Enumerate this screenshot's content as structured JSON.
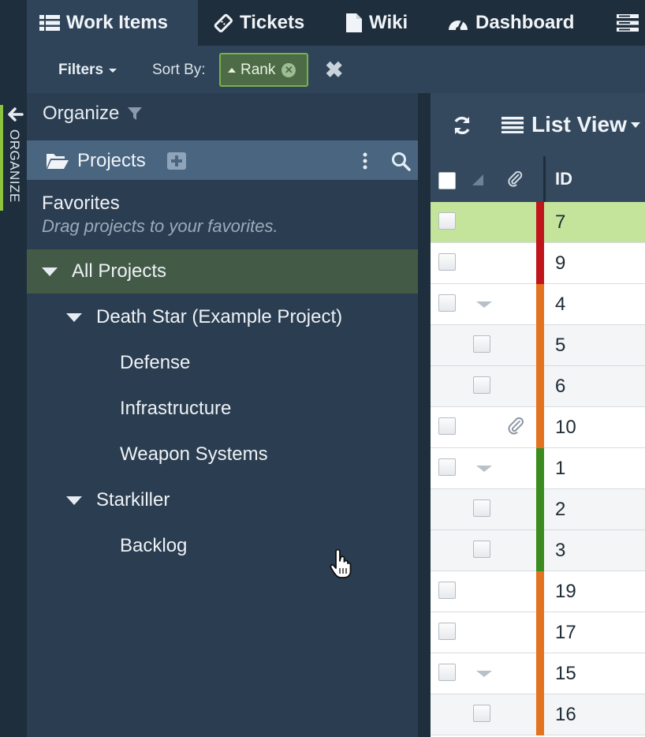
{
  "nav": {
    "tabs": [
      {
        "label": "Work Items",
        "icon": "list-icon"
      },
      {
        "label": "Tickets",
        "icon": "ticket-icon"
      },
      {
        "label": "Wiki",
        "icon": "document-icon"
      },
      {
        "label": "Dashboard",
        "icon": "dashboard-icon"
      }
    ],
    "active_tab": "Work Items"
  },
  "filter_bar": {
    "filters_label": "Filters",
    "sort_by_label": "Sort By:",
    "sort_chip_label": "Rank"
  },
  "organize": {
    "strip_label": "ORGANIZE",
    "title": "Organize",
    "projects_label": "Projects",
    "favorites_title": "Favorites",
    "favorites_hint": "Drag projects to your favorites.",
    "tree": [
      {
        "label": "All Projects",
        "level": 0,
        "expanded": true,
        "selected": true
      },
      {
        "label": "Death Star (Example Project)",
        "level": 1,
        "expanded": true
      },
      {
        "label": "Defense",
        "level": 2
      },
      {
        "label": "Infrastructure",
        "level": 2
      },
      {
        "label": "Weapon Systems",
        "level": 2
      },
      {
        "label": "Starkiller",
        "level": 1,
        "expanded": true
      },
      {
        "label": "Backlog",
        "level": 2
      }
    ]
  },
  "list": {
    "view_label": "List View",
    "columns": {
      "id": "ID"
    },
    "rows": [
      {
        "id": "7",
        "color": "#c0151b",
        "selected": true,
        "indent": false,
        "expand": false,
        "attachment": false
      },
      {
        "id": "9",
        "color": "#c0151b",
        "indent": false,
        "expand": false,
        "attachment": false
      },
      {
        "id": "4",
        "color": "#e3731f",
        "indent": false,
        "expand": true,
        "attachment": false
      },
      {
        "id": "5",
        "color": "#e3731f",
        "indent": true,
        "expand": false,
        "attachment": false
      },
      {
        "id": "6",
        "color": "#e3731f",
        "indent": true,
        "expand": false,
        "attachment": false
      },
      {
        "id": "10",
        "color": "#e3731f",
        "indent": false,
        "expand": false,
        "attachment": true
      },
      {
        "id": "1",
        "color": "#3a8c1f",
        "indent": false,
        "expand": true,
        "attachment": false
      },
      {
        "id": "2",
        "color": "#3a8c1f",
        "indent": true,
        "expand": false,
        "attachment": false
      },
      {
        "id": "3",
        "color": "#3a8c1f",
        "indent": true,
        "expand": false,
        "attachment": false
      },
      {
        "id": "19",
        "color": "#e3731f",
        "indent": false,
        "expand": false,
        "attachment": false
      },
      {
        "id": "17",
        "color": "#e3731f",
        "indent": false,
        "expand": false,
        "attachment": false
      },
      {
        "id": "15",
        "color": "#e3731f",
        "indent": false,
        "expand": true,
        "attachment": false
      },
      {
        "id": "16",
        "color": "#e3731f",
        "indent": true,
        "expand": false,
        "attachment": false
      }
    ]
  },
  "colors": {
    "accent_green": "#8cc43f",
    "nav_bg": "#1f2e3c",
    "panel_bg": "#2b3d50"
  }
}
